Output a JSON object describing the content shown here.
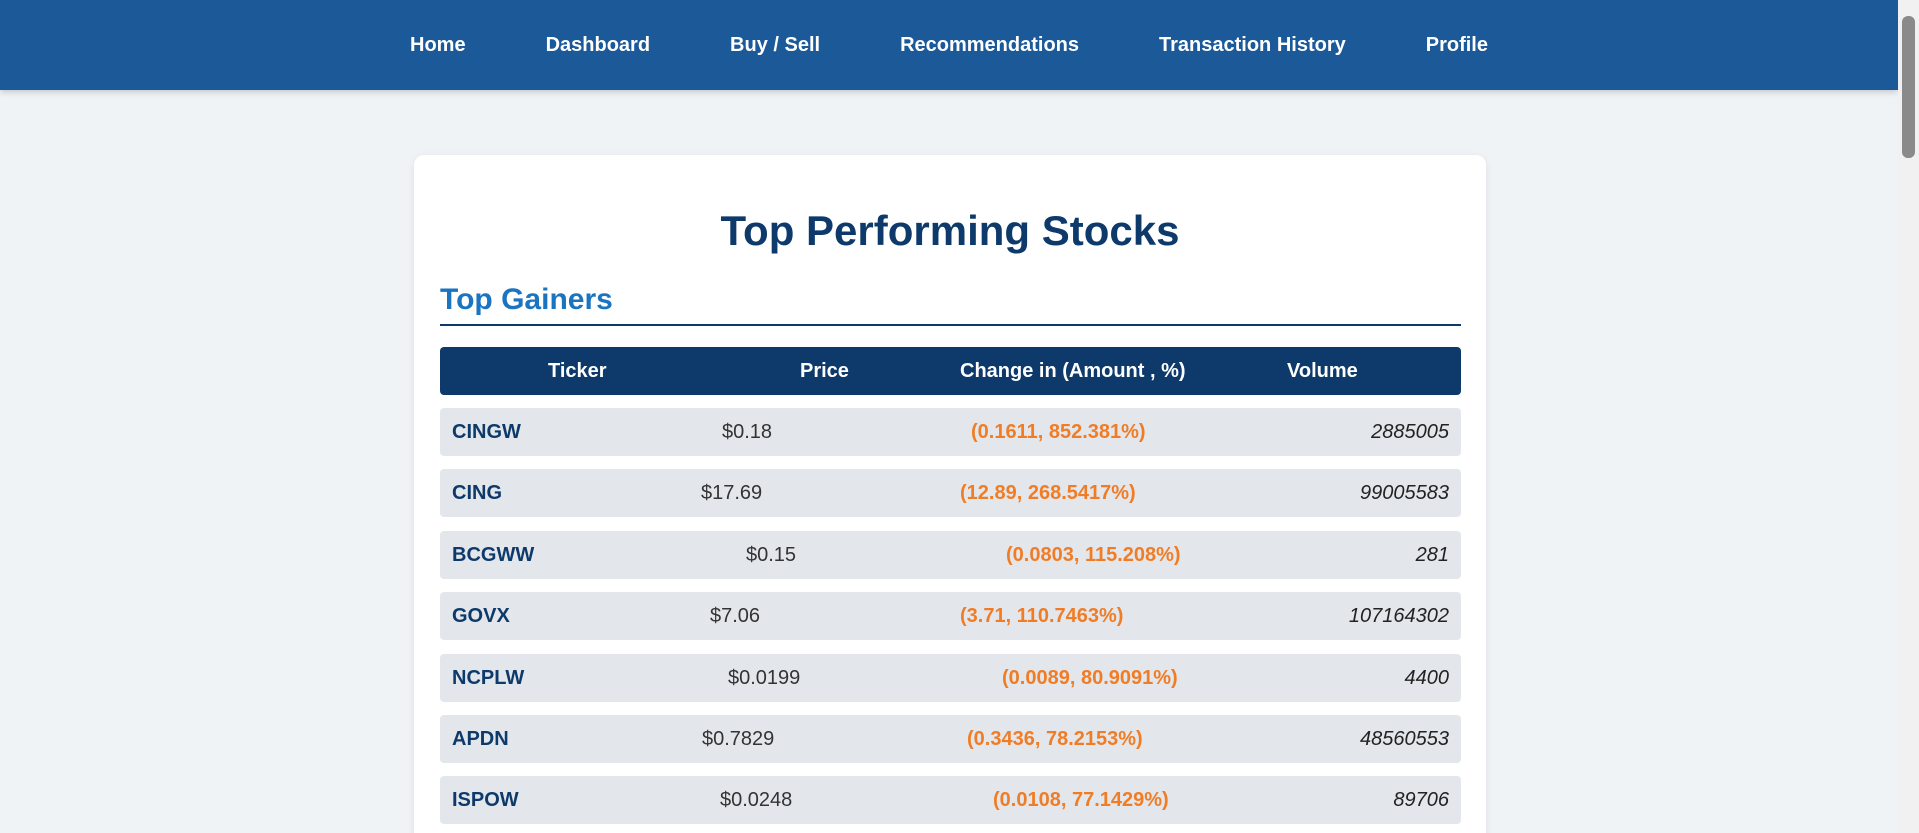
{
  "nav": {
    "items": [
      "Home",
      "Dashboard",
      "Buy / Sell",
      "Recommendations",
      "Transaction History",
      "Profile"
    ]
  },
  "main": {
    "title": "Top Performing Stocks",
    "section_title": "Top Gainers",
    "table": {
      "headers": [
        "Ticker",
        "Price",
        "Change in (Amount , %)",
        "Volume"
      ],
      "rows": [
        {
          "ticker": "CINGW",
          "price": "$0.18",
          "change": "(0.1611, 852.381%)",
          "volume": "2885005"
        },
        {
          "ticker": "CING",
          "price": "$17.69",
          "change": "(12.89, 268.5417%)",
          "volume": "99005583"
        },
        {
          "ticker": "BCGWW",
          "price": "$0.15",
          "change": "(0.0803, 115.208%)",
          "volume": "281"
        },
        {
          "ticker": "GOVX",
          "price": "$7.06",
          "change": "(3.71, 110.7463%)",
          "volume": "107164302"
        },
        {
          "ticker": "NCPLW",
          "price": "$0.0199",
          "change": "(0.0089, 80.9091%)",
          "volume": "4400"
        },
        {
          "ticker": "APDN",
          "price": "$0.7829",
          "change": "(0.3436, 78.2153%)",
          "volume": "48560553"
        },
        {
          "ticker": "ISPOW",
          "price": "$0.0248",
          "change": "(0.0108, 77.1429%)",
          "volume": "89706"
        }
      ]
    }
  }
}
